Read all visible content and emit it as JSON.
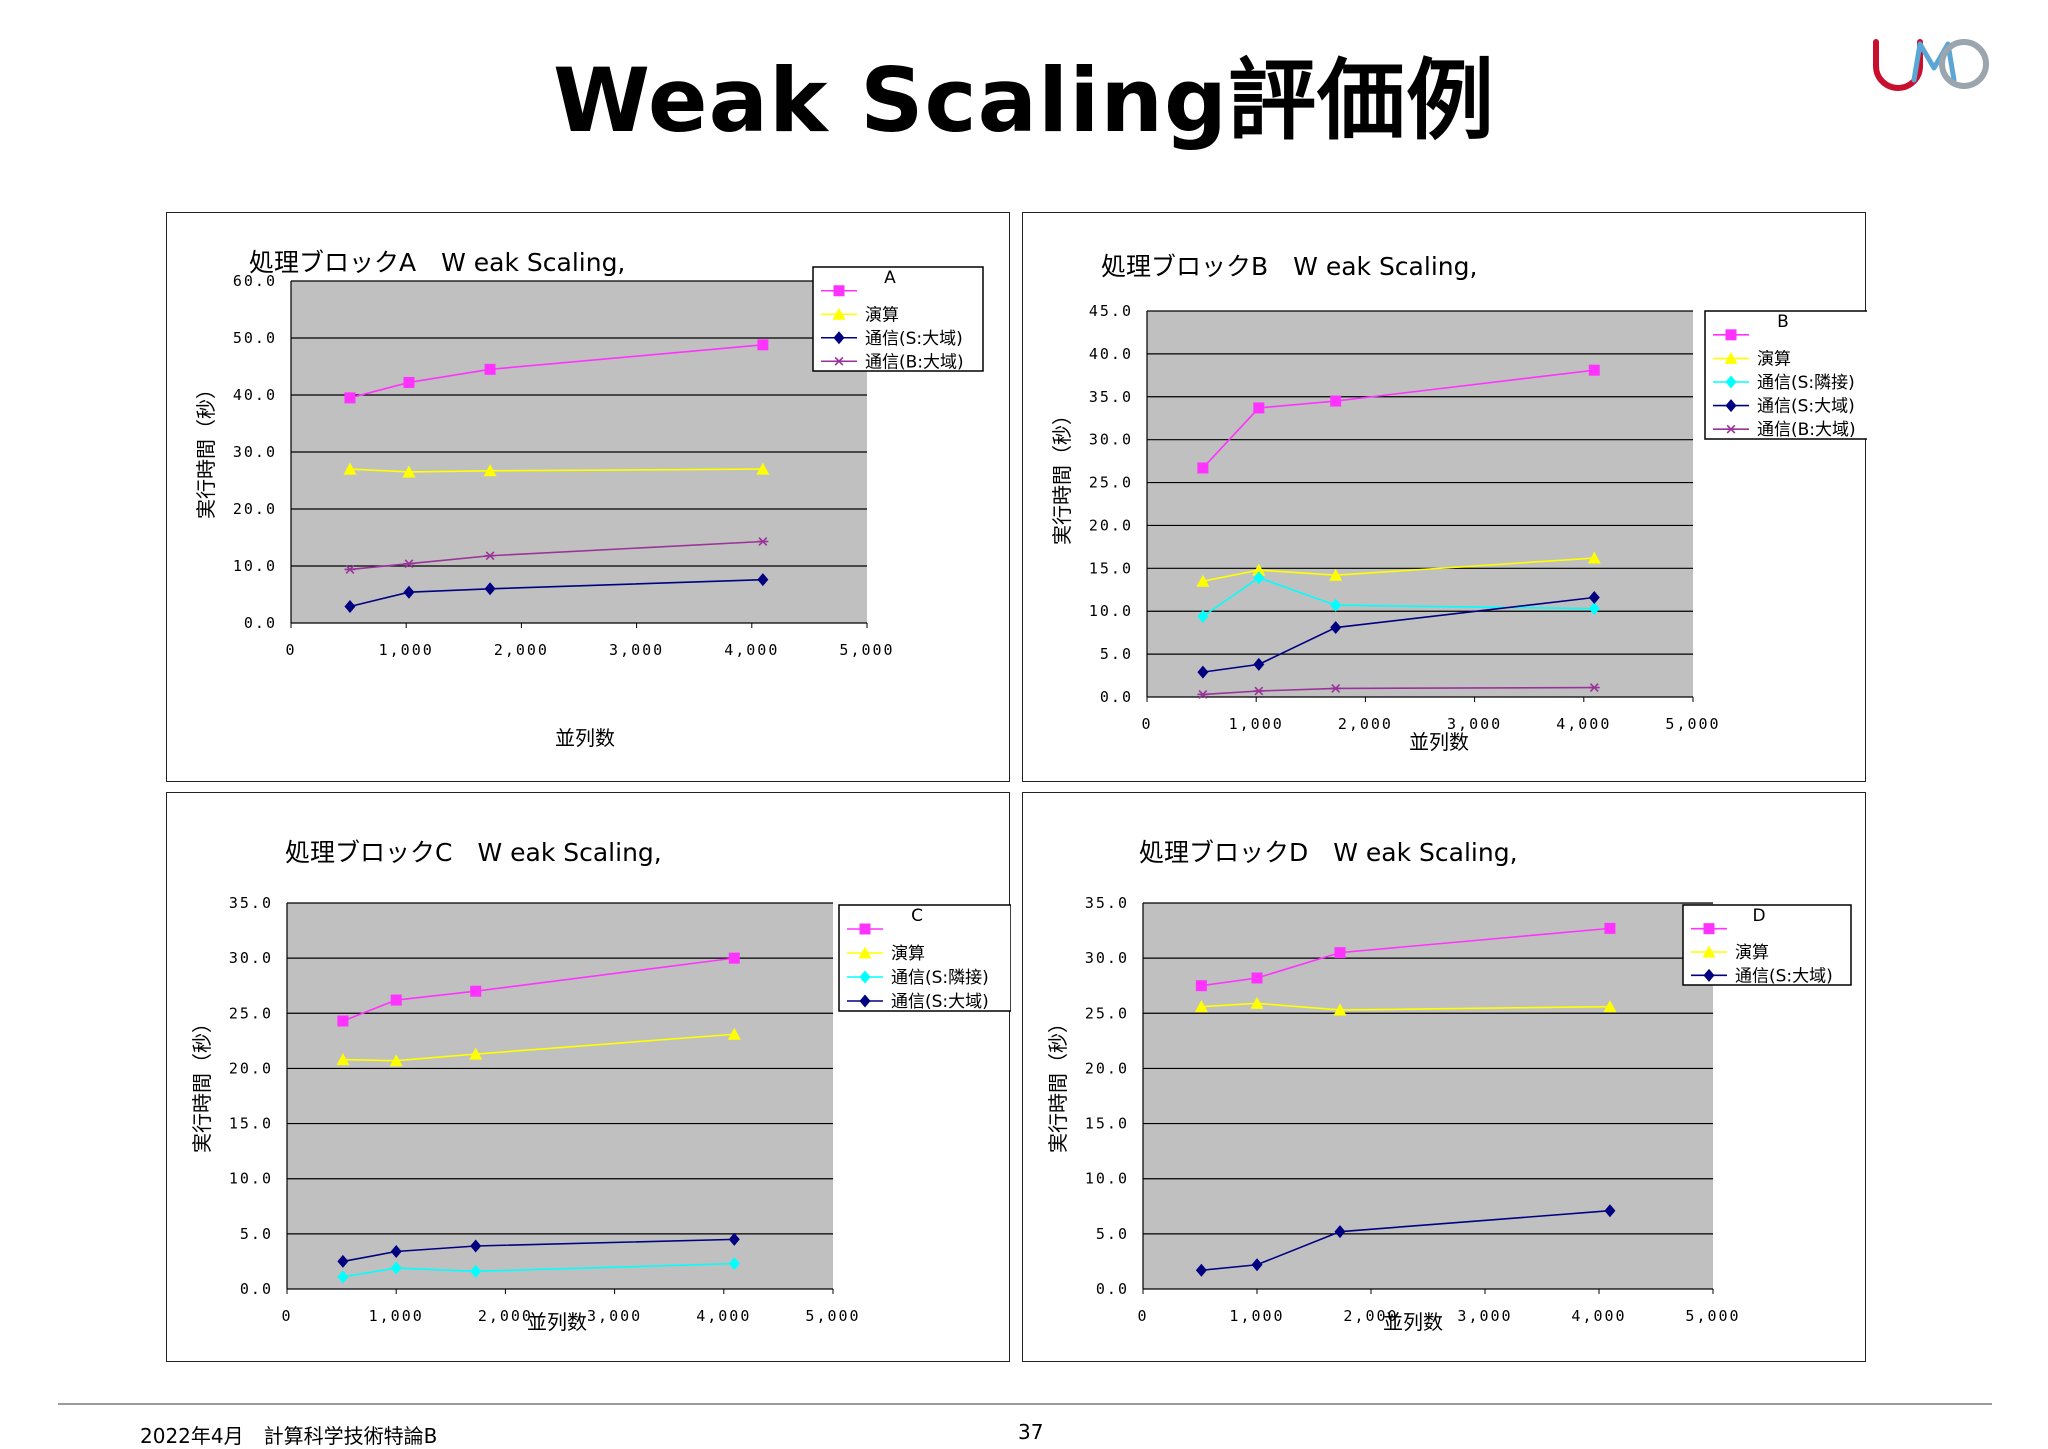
{
  "title": "Weak Scaling評価例",
  "footer": {
    "date_course": "2022年4月　計算科学技術特論B",
    "page": "37"
  },
  "colors": {
    "pink": "#ff33ff",
    "yellow": "#ffff00",
    "cyan": "#00ffff",
    "navy": "#000080",
    "purple": "#993399",
    "plot_bg": "#c0c0c0"
  },
  "chart_data": [
    {
      "type": "line",
      "title": "処理ブロックA　W eak Scaling,",
      "xlabel": "並列数",
      "ylabel": "実行時間（秒）",
      "xlim": [
        0,
        5000
      ],
      "ylim": [
        0,
        60
      ],
      "xticks": [
        0,
        1000,
        2000,
        3000,
        4000,
        5000
      ],
      "xtick_labels": [
        "0",
        "1,000",
        "2,000",
        "3,000",
        "4,000",
        "5,000"
      ],
      "yticks": [
        0,
        10,
        20,
        30,
        40,
        50,
        60
      ],
      "ytick_labels": [
        "0.0",
        "10.0",
        "20.0",
        "30.0",
        "40.0",
        "50.0",
        "60.0"
      ],
      "grid": "horizontal",
      "legend_position": "top-right",
      "legend_title": "A",
      "x": [
        512,
        1024,
        1728,
        4096
      ],
      "series": [
        {
          "name": "",
          "color": "#ff33ff",
          "marker": "square",
          "values": [
            39.5,
            42.2,
            44.5,
            48.8
          ]
        },
        {
          "name": "演算",
          "color": "#ffff00",
          "marker": "triangle",
          "values": [
            27.0,
            26.5,
            26.7,
            27.0
          ]
        },
        {
          "name": "通信(S:大域)",
          "color": "#000080",
          "marker": "diamond",
          "values": [
            2.9,
            5.4,
            6.0,
            7.6
          ]
        },
        {
          "name": "通信(B:大域)",
          "color": "#993399",
          "marker": "star",
          "values": [
            9.4,
            10.4,
            11.8,
            14.3
          ]
        }
      ]
    },
    {
      "type": "line",
      "title": "処理ブロックB　W eak Scaling,",
      "xlabel": "並列数",
      "ylabel": "実行時間（秒）",
      "xlim": [
        0,
        5000
      ],
      "ylim": [
        0,
        45
      ],
      "xticks": [
        0,
        1000,
        2000,
        3000,
        4000,
        5000
      ],
      "xtick_labels": [
        "0",
        "1,000",
        "2,000",
        "3,000",
        "4,000",
        "5,000"
      ],
      "yticks": [
        0,
        5,
        10,
        15,
        20,
        25,
        30,
        35,
        40,
        45
      ],
      "ytick_labels": [
        "0.0",
        "5.0",
        "10.0",
        "15.0",
        "20.0",
        "25.0",
        "30.0",
        "35.0",
        "40.0",
        "45.0"
      ],
      "grid": "horizontal",
      "legend_position": "top-right",
      "legend_title": "B",
      "x": [
        512,
        1024,
        1728,
        4096
      ],
      "series": [
        {
          "name": "",
          "color": "#ff33ff",
          "marker": "square",
          "values": [
            26.7,
            33.7,
            34.5,
            38.1
          ]
        },
        {
          "name": "演算",
          "color": "#ffff00",
          "marker": "triangle",
          "values": [
            13.5,
            14.8,
            14.2,
            16.2
          ]
        },
        {
          "name": "通信(S:隣接)",
          "color": "#00ffff",
          "marker": "diamond",
          "values": [
            9.4,
            13.9,
            10.7,
            10.3
          ]
        },
        {
          "name": "通信(S:大域)",
          "color": "#000080",
          "marker": "diamond",
          "values": [
            2.9,
            3.8,
            8.1,
            11.6
          ]
        },
        {
          "name": "通信(B:大域)",
          "color": "#993399",
          "marker": "star",
          "values": [
            0.3,
            0.7,
            1.0,
            1.1
          ]
        }
      ]
    },
    {
      "type": "line",
      "title": "処理ブロックC　W eak Scaling,",
      "xlabel": "並列数",
      "ylabel": "実行時間（秒）",
      "xlim": [
        0,
        5000
      ],
      "ylim": [
        0,
        35
      ],
      "xticks": [
        0,
        1000,
        2000,
        3000,
        4000,
        5000
      ],
      "xtick_labels": [
        "0",
        "1,000",
        "2,000",
        "3,000",
        "4,000",
        "5,000"
      ],
      "yticks": [
        0,
        5,
        10,
        15,
        20,
        25,
        30,
        35
      ],
      "ytick_labels": [
        "0.0",
        "5.0",
        "10.0",
        "15.0",
        "20.0",
        "25.0",
        "30.0",
        "35.0"
      ],
      "grid": "horizontal",
      "legend_position": "top-right",
      "legend_title": "C",
      "x": [
        512,
        1000,
        1728,
        4096
      ],
      "series": [
        {
          "name": "",
          "color": "#ff33ff",
          "marker": "square",
          "values": [
            24.3,
            26.2,
            27.0,
            30.0
          ]
        },
        {
          "name": "演算",
          "color": "#ffff00",
          "marker": "triangle",
          "values": [
            20.8,
            20.7,
            21.3,
            23.1
          ]
        },
        {
          "name": "通信(S:隣接)",
          "color": "#00ffff",
          "marker": "diamond",
          "values": [
            1.1,
            1.9,
            1.6,
            2.3
          ]
        },
        {
          "name": "通信(S:大域)",
          "color": "#000080",
          "marker": "diamond",
          "values": [
            2.5,
            3.4,
            3.9,
            4.5
          ]
        }
      ]
    },
    {
      "type": "line",
      "title": "処理ブロックD　W eak Scaling,",
      "xlabel": "並列数",
      "ylabel": "実行時間（秒）",
      "xlim": [
        0,
        5000
      ],
      "ylim": [
        0,
        35
      ],
      "xticks": [
        0,
        1000,
        2000,
        3000,
        4000,
        5000
      ],
      "xtick_labels": [
        "0",
        "1,000",
        "2,000",
        "3,000",
        "4,000",
        "5,000"
      ],
      "yticks": [
        0,
        5,
        10,
        15,
        20,
        25,
        30,
        35
      ],
      "ytick_labels": [
        "0.0",
        "5.0",
        "10.0",
        "15.0",
        "20.0",
        "25.0",
        "30.0",
        "35.0"
      ],
      "grid": "horizontal",
      "legend_position": "top-right",
      "legend_title": "D",
      "x": [
        512,
        1000,
        1728,
        4096
      ],
      "series": [
        {
          "name": "",
          "color": "#ff33ff",
          "marker": "square",
          "values": [
            27.5,
            28.2,
            30.5,
            32.7
          ]
        },
        {
          "name": "演算",
          "color": "#ffff00",
          "marker": "triangle",
          "values": [
            25.6,
            25.9,
            25.3,
            25.6
          ]
        },
        {
          "name": "通信(S:大域)",
          "color": "#000080",
          "marker": "diamond",
          "values": [
            1.7,
            2.2,
            5.2,
            7.1
          ]
        }
      ]
    }
  ]
}
